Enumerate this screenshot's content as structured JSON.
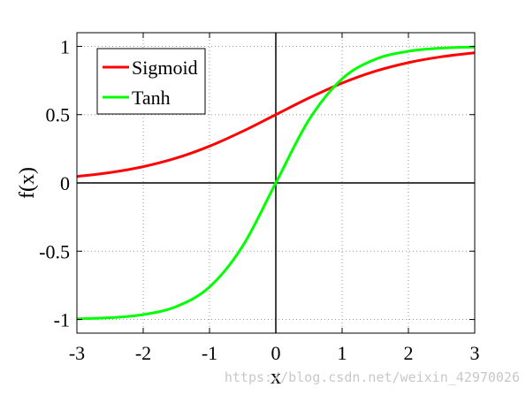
{
  "chart_data": {
    "type": "line",
    "xlabel": "x",
    "ylabel": "f(x)",
    "xlim": [
      -3,
      3
    ],
    "ylim": [
      -1.1,
      1.1
    ],
    "x_ticks": [
      -3,
      -2,
      -1,
      0,
      1,
      2,
      3
    ],
    "x_tick_labels": [
      "-3",
      "-2",
      "-1",
      "0",
      "1",
      "2",
      "3"
    ],
    "y_ticks": [
      -1,
      -0.5,
      0,
      0.5,
      1
    ],
    "y_tick_labels": [
      "-1",
      "-0.5",
      "0",
      "0.5",
      "1"
    ],
    "grid": true,
    "legend_position": "top-left",
    "x": [
      -3,
      -2.5,
      -2,
      -1.5,
      -1,
      -0.5,
      0,
      0.5,
      1,
      1.5,
      2,
      2.5,
      3
    ],
    "series": [
      {
        "name": "Sigmoid",
        "color": "#ff0000",
        "values": [
          0.047,
          0.076,
          0.119,
          0.182,
          0.269,
          0.378,
          0.5,
          0.622,
          0.731,
          0.818,
          0.881,
          0.924,
          0.953
        ]
      },
      {
        "name": "Tanh",
        "color": "#00ff00",
        "values": [
          -0.995,
          -0.987,
          -0.964,
          -0.905,
          -0.762,
          -0.462,
          0,
          0.462,
          0.762,
          0.905,
          0.964,
          0.987,
          0.995
        ]
      }
    ],
    "reference_lines": {
      "x": 0,
      "y": 0,
      "color": "#000000"
    }
  },
  "watermark": "https://blog.csdn.net/weixin_42970026"
}
